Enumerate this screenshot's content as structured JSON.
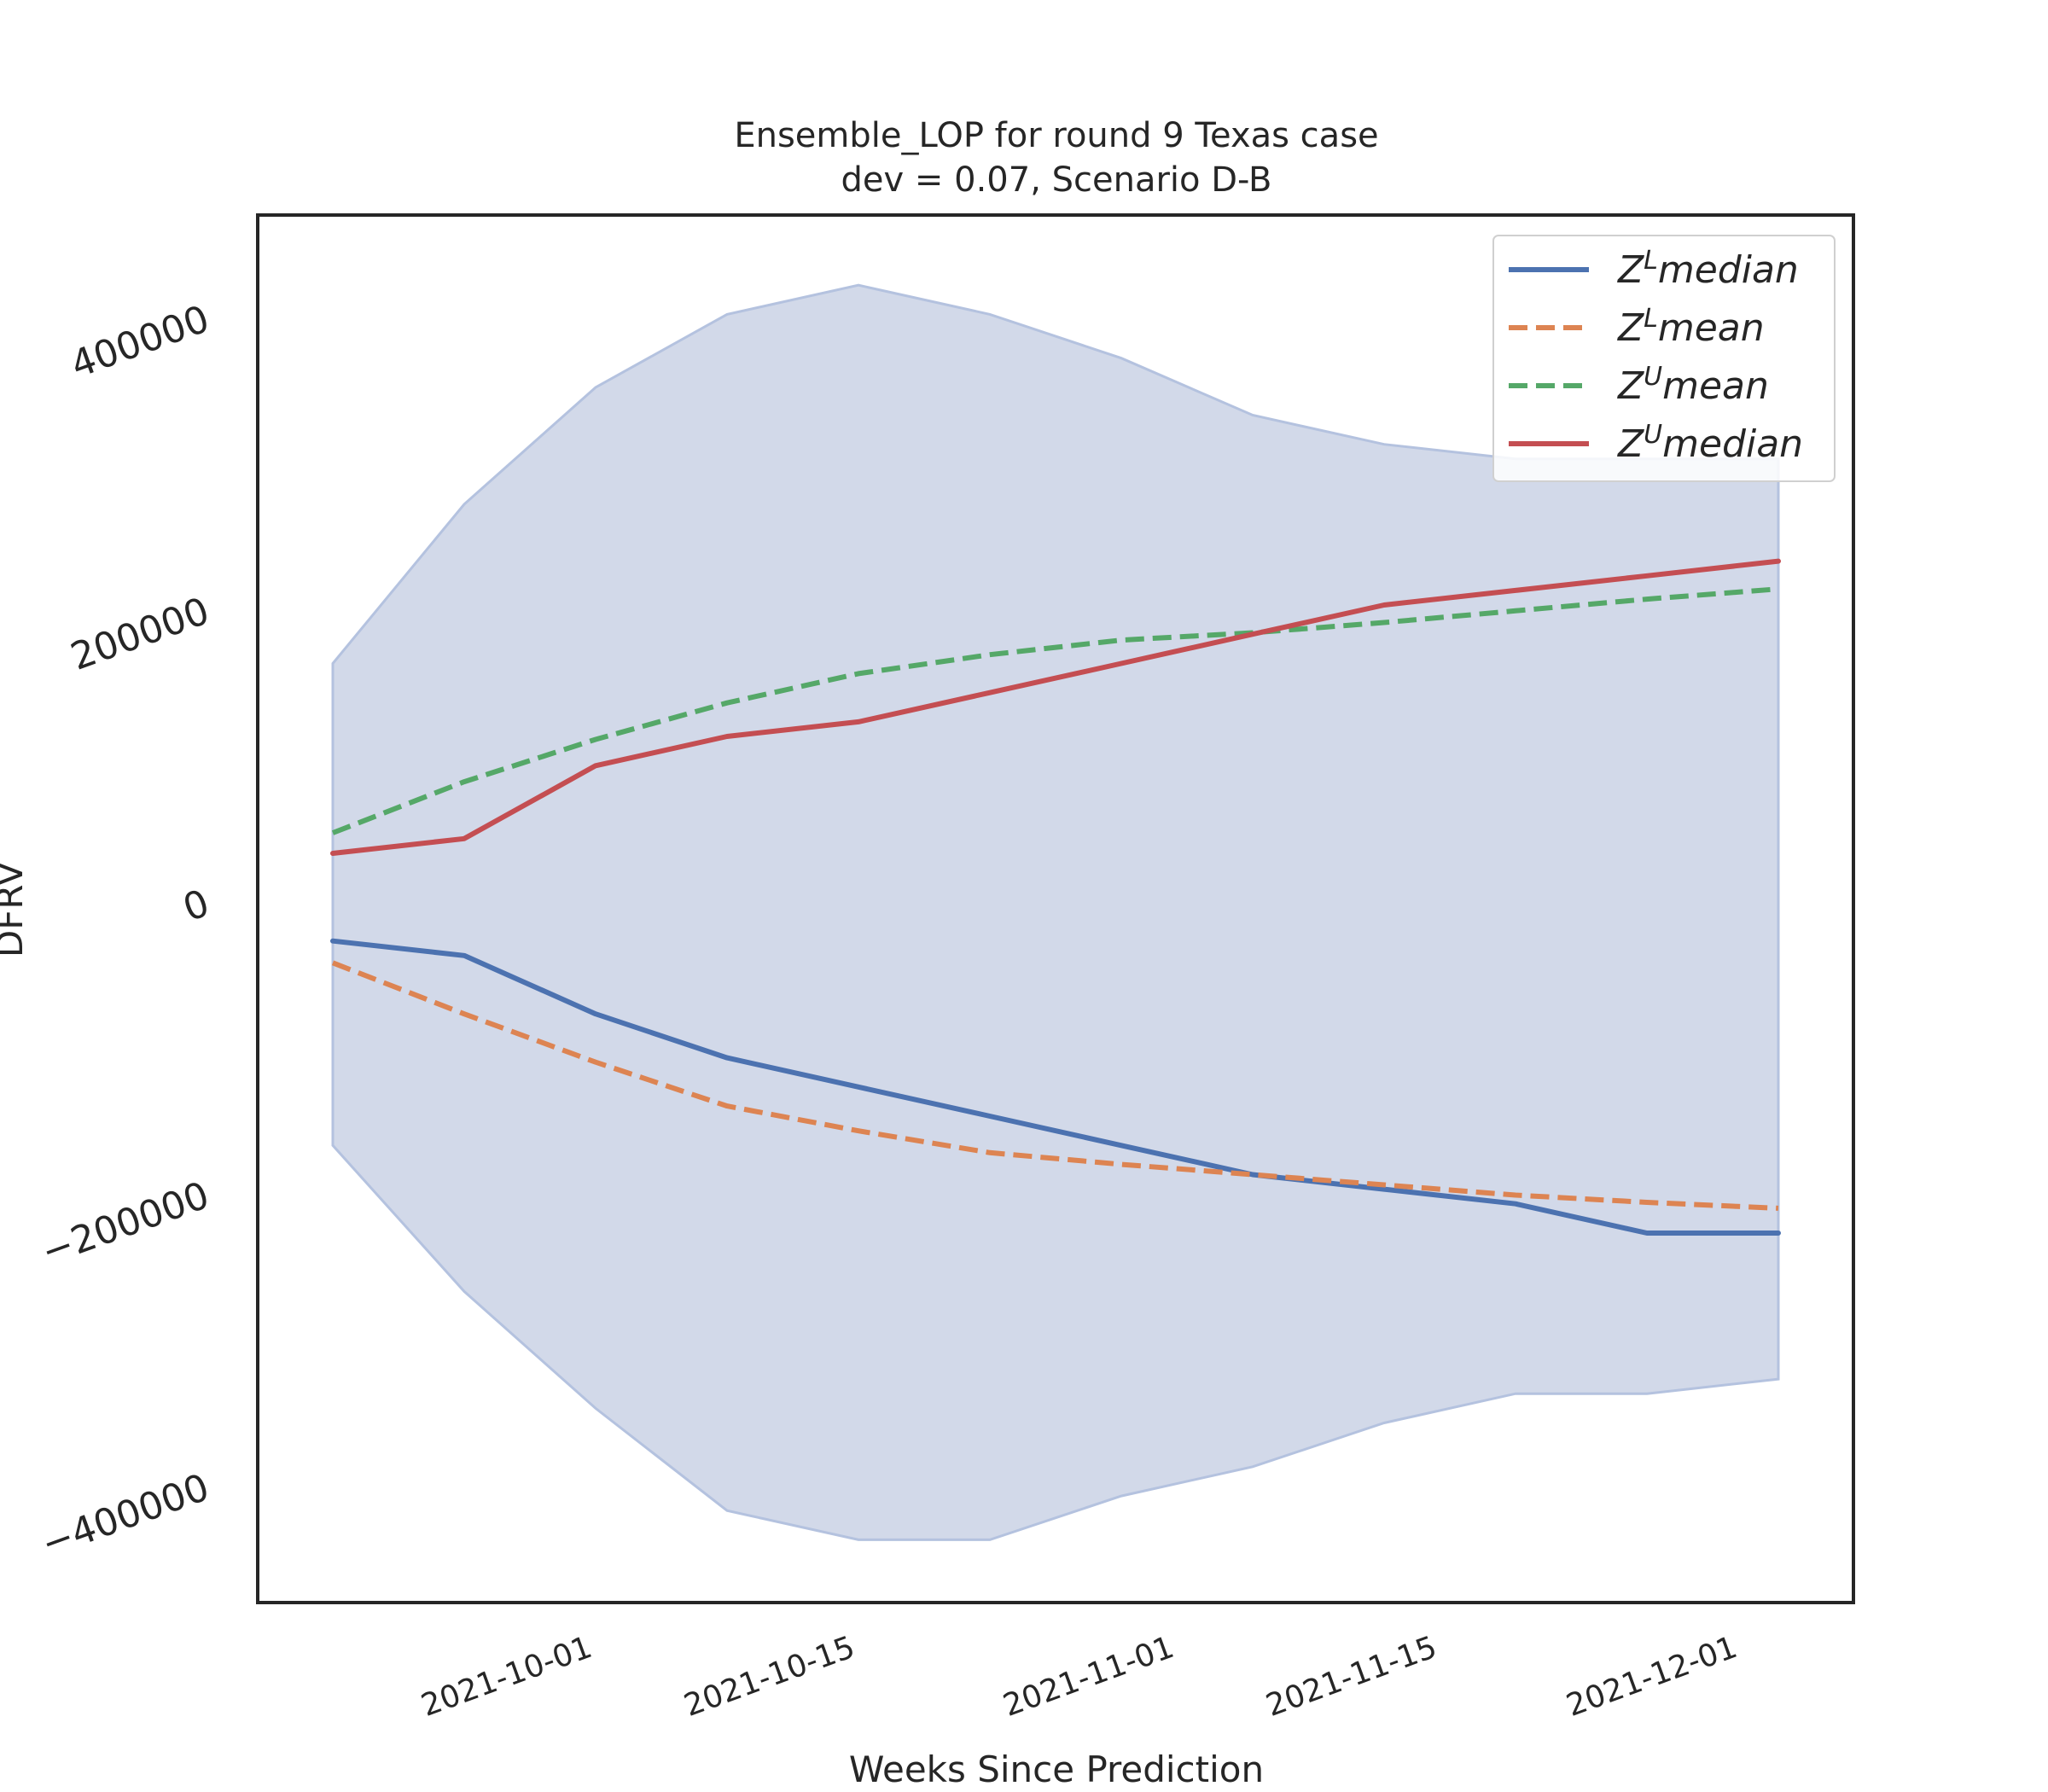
{
  "chart_data": {
    "type": "line",
    "title": "Ensemble_LOP for round 9 Texas case",
    "subtitle": "dev = 0.07, Scenario D-B",
    "xlabel": "Weeks Since Prediction",
    "ylabel": "DFRV",
    "x": [
      "2021-09-18",
      "2021-09-25",
      "2021-10-02",
      "2021-10-09",
      "2021-10-16",
      "2021-10-23",
      "2021-10-30",
      "2021-11-06",
      "2021-11-13",
      "2021-11-20",
      "2021-11-27",
      "2021-12-04"
    ],
    "xlim": [
      "2021-09-14",
      "2021-12-08"
    ],
    "ylim": [
      -480000,
      470000
    ],
    "xticks": [
      "2021-10-01",
      "2021-10-15",
      "2021-11-01",
      "2021-11-15",
      "2021-12-01"
    ],
    "yticks": [
      -400000,
      -200000,
      0,
      200000,
      400000
    ],
    "ytick_labels": [
      "−400000",
      "−200000",
      "0",
      "200000",
      "400000"
    ],
    "band": {
      "upper": [
        163000,
        272000,
        352000,
        402000,
        422000,
        402000,
        372000,
        333000,
        313000,
        303000,
        303000,
        303000
      ],
      "lower": [
        -167000,
        -267000,
        -347000,
        -417000,
        -437000,
        -437000,
        -407000,
        -387000,
        -357000,
        -337000,
        -337000,
        -327000
      ],
      "color": "#d2d9e9"
    },
    "series": [
      {
        "name": "Z^L median",
        "sup": "L",
        "label": "median",
        "style": "solid",
        "color": "#4c72b0",
        "values": [
          -27000,
          -37000,
          -77000,
          -107000,
          -127000,
          -147000,
          -167000,
          -187000,
          -197000,
          -207000,
          -227000,
          -227000
        ]
      },
      {
        "name": "Z^L mean",
        "sup": "L",
        "label": "mean",
        "style": "dashed",
        "color": "#dd8452",
        "values": [
          -42000,
          -77000,
          -110000,
          -140000,
          -157000,
          -172000,
          -180000,
          -187000,
          -194000,
          -201000,
          -206000,
          -210000
        ]
      },
      {
        "name": "Z^U mean",
        "sup": "U",
        "label": "mean",
        "style": "dashed",
        "color": "#55a868",
        "values": [
          47000,
          82000,
          111000,
          136000,
          156000,
          169000,
          179000,
          184000,
          191000,
          199000,
          207000,
          214000
        ]
      },
      {
        "name": "Z^U median",
        "sup": "U",
        "label": "median",
        "style": "solid",
        "color": "#c44e52",
        "values": [
          33000,
          43000,
          93000,
          113000,
          123000,
          143000,
          163000,
          183000,
          203000,
          213000,
          223000,
          233000
        ]
      }
    ],
    "legend_position": "top-right",
    "grid": false
  }
}
